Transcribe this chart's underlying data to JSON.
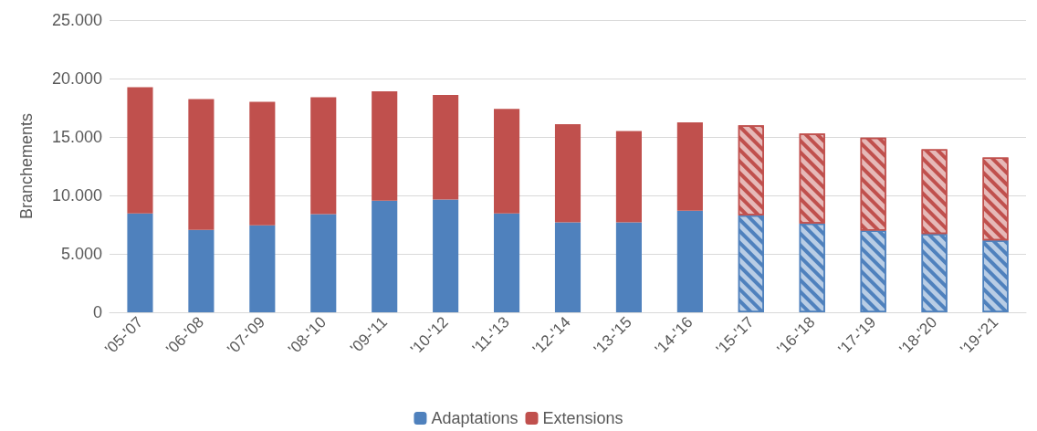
{
  "chart_data": {
    "type": "bar",
    "stacked": true,
    "ylabel": "Branchements",
    "categories": [
      "'05-'07",
      "'06-'08",
      "'07-'09",
      "'08-'10",
      "'09-'11",
      "'10-'12",
      "'11-'13",
      "'12-'14",
      "'13-'15",
      "'14-'16",
      "'15-'17",
      "'16-'18",
      "'17-'19",
      "'18-'20",
      "'19-'21"
    ],
    "series": [
      {
        "name": "Adaptations",
        "color": "#4f81bd",
        "colors": [
          "#4f81bd",
          "#4f81bd",
          "#4f81bd",
          "#4f81bd",
          "#4f81bd",
          "#4f81bd",
          "#4f81bd",
          "#4f81bd",
          "#4f81bd",
          "#4f81bd",
          "#b9cde5",
          "#b9cde5",
          "#b9cde5",
          "#b9cde5",
          "#b9cde5"
        ],
        "values": [
          8450,
          7050,
          7450,
          8400,
          9550,
          9650,
          8450,
          7700,
          7700,
          8700,
          8300,
          7600,
          7000,
          6700,
          6150
        ]
      },
      {
        "name": "Extensions",
        "color": "#c0504d",
        "colors": [
          "#c0504d",
          "#c0504d",
          "#c0504d",
          "#c0504d",
          "#c0504d",
          "#c0504d",
          "#c0504d",
          "#c0504d",
          "#c0504d",
          "#c0504d",
          "#e6b9b8",
          "#e6b9b8",
          "#e6b9b8",
          "#e6b9b8",
          "#e6b9b8"
        ],
        "values": [
          10800,
          11200,
          10550,
          10000,
          9350,
          8950,
          8950,
          8400,
          7800,
          7550,
          7700,
          7700,
          7950,
          7250,
          7100
        ]
      }
    ],
    "ylim": [
      0,
      25000
    ],
    "yticks": [
      {
        "value": 0,
        "label": "0"
      },
      {
        "value": 5000,
        "label": "5.000"
      },
      {
        "value": 10000,
        "label": "10.000"
      },
      {
        "value": 15000,
        "label": "15.000"
      },
      {
        "value": 20000,
        "label": "20.000"
      },
      {
        "value": 25000,
        "label": "25.000"
      }
    ],
    "grid": "y",
    "legend": "bottom"
  }
}
